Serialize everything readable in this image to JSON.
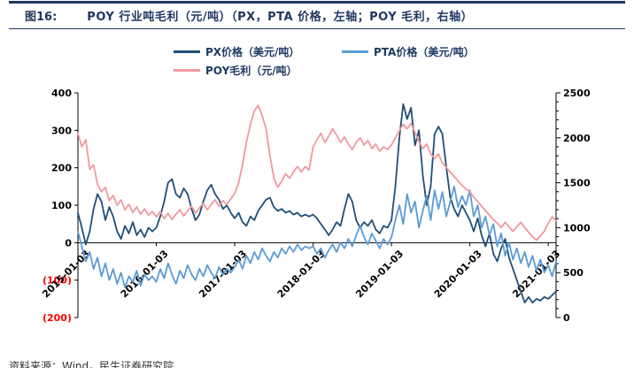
{
  "header": {
    "figure_label": "图16:",
    "title": "POY 行业吨毛利（元/吨）（PX，PTA 价格，左轴；POY 毛利，右轴）"
  },
  "footer": {
    "source": "资料来源：Wind，民生证券研究院"
  },
  "colors": {
    "accent_navy": "#1F3864",
    "px_line": "#1F4E79",
    "pta_line": "#5B9BD5",
    "poy_line": "#F0999F",
    "negative_label": "#FF0000",
    "axis": "#000000"
  },
  "chart_data": {
    "type": "line",
    "title": "POY 行业吨毛利（元/吨）（PX，PTA 价格，左轴；POY 毛利，右轴）",
    "legend_position": "top",
    "grid": false,
    "x_start": 2015.0,
    "x_step": 0.05,
    "x_axis": {
      "range": [
        2015.0,
        2021.1
      ],
      "ticks": [
        2015,
        2016,
        2017,
        2018,
        2019,
        2020,
        2021
      ],
      "tick_labels": [
        "2015-01-03",
        "2016-01-03",
        "2017-01-03",
        "2018-01-03",
        "2019-01-03",
        "2020-01-03",
        "2021-01-03"
      ]
    },
    "left_axis": {
      "range": [
        -200,
        400
      ],
      "ticks": [
        400,
        300,
        200,
        100,
        0,
        -100,
        -200
      ],
      "tick_labels": [
        "400",
        "300",
        "200",
        "100",
        "0",
        "(100)",
        "(200)"
      ]
    },
    "right_axis": {
      "range": [
        0,
        2500
      ],
      "ticks": [
        2500,
        2000,
        1500,
        1000,
        500,
        0
      ],
      "tick_labels": [
        "2500",
        "2000",
        "1500",
        "1000",
        "500",
        "0"
      ],
      "minor_tick_step": 100
    },
    "series": [
      {
        "name": "PX价格（美元/吨）",
        "axis": "left",
        "color": "#1F4E79",
        "values": [
          80,
          40,
          -5,
          30,
          90,
          130,
          110,
          60,
          95,
          70,
          30,
          10,
          45,
          25,
          55,
          20,
          35,
          15,
          40,
          30,
          40,
          70,
          110,
          160,
          170,
          130,
          120,
          145,
          130,
          90,
          60,
          75,
          110,
          140,
          155,
          130,
          115,
          90,
          100,
          80,
          65,
          80,
          55,
          45,
          70,
          60,
          85,
          100,
          115,
          120,
          95,
          85,
          90,
          80,
          85,
          75,
          80,
          70,
          75,
          70,
          75,
          65,
          50,
          35,
          20,
          35,
          55,
          45,
          90,
          130,
          110,
          60,
          40,
          55,
          45,
          60,
          35,
          25,
          45,
          40,
          60,
          150,
          280,
          370,
          330,
          360,
          260,
          300,
          180,
          100,
          150,
          290,
          310,
          290,
          200,
          120,
          90,
          70,
          100,
          80,
          60,
          30,
          65,
          20,
          -10,
          25,
          -30,
          -50,
          -15,
          10,
          -40,
          -70,
          -100,
          -130,
          -160,
          -145,
          -160,
          -150,
          -155,
          -145,
          -150,
          -140,
          -130
        ]
      },
      {
        "name": "PTA价格（美元/吨）",
        "axis": "left",
        "color": "#5B9BD5",
        "values": [
          30,
          -10,
          -50,
          -25,
          -70,
          -40,
          -90,
          -55,
          -100,
          -70,
          -110,
          -80,
          -120,
          -90,
          -105,
          -75,
          -115,
          -85,
          -100,
          -90,
          -105,
          -70,
          -95,
          -55,
          -85,
          -110,
          -75,
          -95,
          -60,
          -85,
          -100,
          -70,
          -90,
          -60,
          -80,
          -95,
          -65,
          -85,
          -70,
          -80,
          -65,
          -45,
          -70,
          -35,
          -55,
          -25,
          -45,
          -15,
          -35,
          -50,
          -25,
          -40,
          -15,
          -30,
          -10,
          -25,
          -5,
          -20,
          -10,
          -15,
          -10,
          -30,
          -15,
          -40,
          -20,
          -5,
          -25,
          0,
          -15,
          10,
          -10,
          20,
          45,
          15,
          -5,
          25,
          5,
          -15,
          10,
          -5,
          15,
          60,
          100,
          50,
          130,
          80,
          110,
          40,
          85,
          125,
          60,
          140,
          90,
          135,
          70,
          110,
          150,
          95,
          125,
          100,
          140,
          70,
          100,
          40,
          70,
          20,
          50,
          -10,
          25,
          -35,
          0,
          -45,
          -15,
          -55,
          -25,
          -65,
          -35,
          -75,
          -45,
          -80,
          -60,
          -90,
          -50
        ]
      },
      {
        "name": "POY毛利（元/吨）",
        "axis": "right",
        "color": "#F0999F",
        "values": [
          2050,
          1900,
          1980,
          1650,
          1700,
          1480,
          1400,
          1450,
          1300,
          1360,
          1250,
          1310,
          1200,
          1260,
          1170,
          1230,
          1150,
          1210,
          1140,
          1180,
          1120,
          1180,
          1100,
          1160,
          1090,
          1150,
          1200,
          1130,
          1190,
          1240,
          1160,
          1220,
          1270,
          1200,
          1260,
          1310,
          1240,
          1300,
          1260,
          1320,
          1380,
          1500,
          1700,
          1950,
          2150,
          2300,
          2360,
          2250,
          2100,
          1800,
          1550,
          1450,
          1520,
          1600,
          1550,
          1620,
          1680,
          1620,
          1680,
          1640,
          1900,
          1980,
          2050,
          1950,
          2020,
          2100,
          2030,
          1950,
          2010,
          1930,
          1870,
          1950,
          2000,
          1920,
          1970,
          1880,
          1930,
          1850,
          1900,
          1870,
          1920,
          2000,
          2080,
          2150,
          2100,
          2160,
          2060,
          1960,
          1880,
          1930,
          1820,
          1770,
          1820,
          1720,
          1670,
          1620,
          1570,
          1520,
          1470,
          1430,
          1400,
          1340,
          1290,
          1240,
          1190,
          1140,
          1090,
          1050,
          1000,
          1060,
          1010,
          960,
          1010,
          1060,
          1000,
          950,
          900,
          860,
          910,
          960,
          1050,
          1120,
          1080
        ]
      }
    ]
  }
}
